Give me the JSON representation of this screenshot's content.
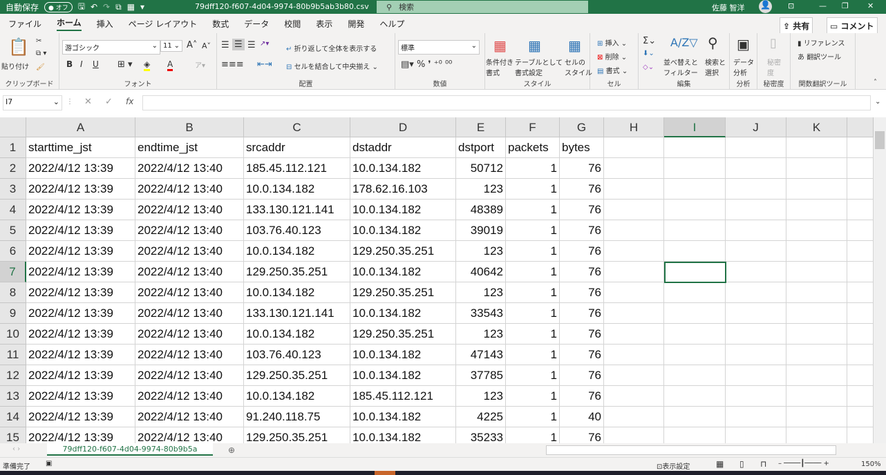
{
  "titlebar": {
    "autosave": "自動保存",
    "autosave_state": "オフ",
    "filename": "79dff120-f607-4d04-9974-80b9b5ab3b80.csv",
    "search_placeholder": "検索",
    "user": "佐藤 智洋"
  },
  "tabs": [
    "ファイル",
    "ホーム",
    "挿入",
    "ページ レイアウト",
    "数式",
    "データ",
    "校閲",
    "表示",
    "開発",
    "ヘルプ"
  ],
  "active_tab": "ホーム",
  "share_label": "共有",
  "comment_label": "コメント",
  "ribbon": {
    "clipboard": {
      "paste": "貼り付け",
      "label": "クリップボード"
    },
    "font": {
      "name": "游ゴシック",
      "size": "11",
      "label": "フォント",
      "bold": "B",
      "italic": "I",
      "underline": "U"
    },
    "alignment": {
      "wrap": "折り返して全体を表示する",
      "merge": "セルを結合して中央揃え",
      "label": "配置"
    },
    "number": {
      "format": "標準",
      "label": "数値"
    },
    "styles": {
      "conditional": "条件付き\n書式",
      "table": "テーブルとして\n書式設定",
      "cell": "セルの\nスタイル",
      "label": "スタイル"
    },
    "cells": {
      "insert": "挿入",
      "delete": "削除",
      "format": "書式",
      "label": "セル"
    },
    "editing": {
      "sort": "並べ替えと\nフィルター",
      "find": "検索と\n選択",
      "label": "編集"
    },
    "analysis": {
      "data": "データ\n分析",
      "label": "分析"
    },
    "sensitivity": {
      "btn": "秘密\n度",
      "label": "秘密度"
    },
    "translate": {
      "reference": "リファレンス",
      "tool": "翻訳ツール",
      "label": "関数翻訳ツール"
    }
  },
  "formula_bar": {
    "name_box": "I7",
    "formula": ""
  },
  "columns": [
    "A",
    "B",
    "C",
    "D",
    "E",
    "F",
    "G",
    "H",
    "I",
    "J",
    "K"
  ],
  "selected_cell": {
    "col": "I",
    "row": 7
  },
  "rows": [
    [
      "starttime_jst",
      "endtime_jst",
      "srcaddr",
      "dstaddr",
      "dstport",
      "packets",
      "bytes"
    ],
    [
      "2022/4/12 13:39",
      "2022/4/12 13:40",
      "185.45.112.121",
      "10.0.134.182",
      "50712",
      "1",
      "76"
    ],
    [
      "2022/4/12 13:39",
      "2022/4/12 13:40",
      "10.0.134.182",
      "178.62.16.103",
      "123",
      "1",
      "76"
    ],
    [
      "2022/4/12 13:39",
      "2022/4/12 13:40",
      "133.130.121.141",
      "10.0.134.182",
      "48389",
      "1",
      "76"
    ],
    [
      "2022/4/12 13:39",
      "2022/4/12 13:40",
      "103.76.40.123",
      "10.0.134.182",
      "39019",
      "1",
      "76"
    ],
    [
      "2022/4/12 13:39",
      "2022/4/12 13:40",
      "10.0.134.182",
      "129.250.35.251",
      "123",
      "1",
      "76"
    ],
    [
      "2022/4/12 13:39",
      "2022/4/12 13:40",
      "129.250.35.251",
      "10.0.134.182",
      "40642",
      "1",
      "76"
    ],
    [
      "2022/4/12 13:39",
      "2022/4/12 13:40",
      "10.0.134.182",
      "129.250.35.251",
      "123",
      "1",
      "76"
    ],
    [
      "2022/4/12 13:39",
      "2022/4/12 13:40",
      "133.130.121.141",
      "10.0.134.182",
      "33543",
      "1",
      "76"
    ],
    [
      "2022/4/12 13:39",
      "2022/4/12 13:40",
      "10.0.134.182",
      "129.250.35.251",
      "123",
      "1",
      "76"
    ],
    [
      "2022/4/12 13:39",
      "2022/4/12 13:40",
      "103.76.40.123",
      "10.0.134.182",
      "47143",
      "1",
      "76"
    ],
    [
      "2022/4/12 13:39",
      "2022/4/12 13:40",
      "129.250.35.251",
      "10.0.134.182",
      "37785",
      "1",
      "76"
    ],
    [
      "2022/4/12 13:39",
      "2022/4/12 13:40",
      "10.0.134.182",
      "185.45.112.121",
      "123",
      "1",
      "76"
    ],
    [
      "2022/4/12 13:39",
      "2022/4/12 13:40",
      "91.240.118.75",
      "10.0.134.182",
      "4225",
      "1",
      "40"
    ],
    [
      "2022/4/12 13:39",
      "2022/4/12 13:40",
      "129.250.35.251",
      "10.0.134.182",
      "35233",
      "1",
      "76"
    ]
  ],
  "sheet_tab": "79dff120-f607-4d04-9974-80b9b5a",
  "status": {
    "ready": "準備完了",
    "display_settings": "表示設定",
    "zoom": "150%"
  },
  "colors": {
    "accent": "#217346"
  }
}
